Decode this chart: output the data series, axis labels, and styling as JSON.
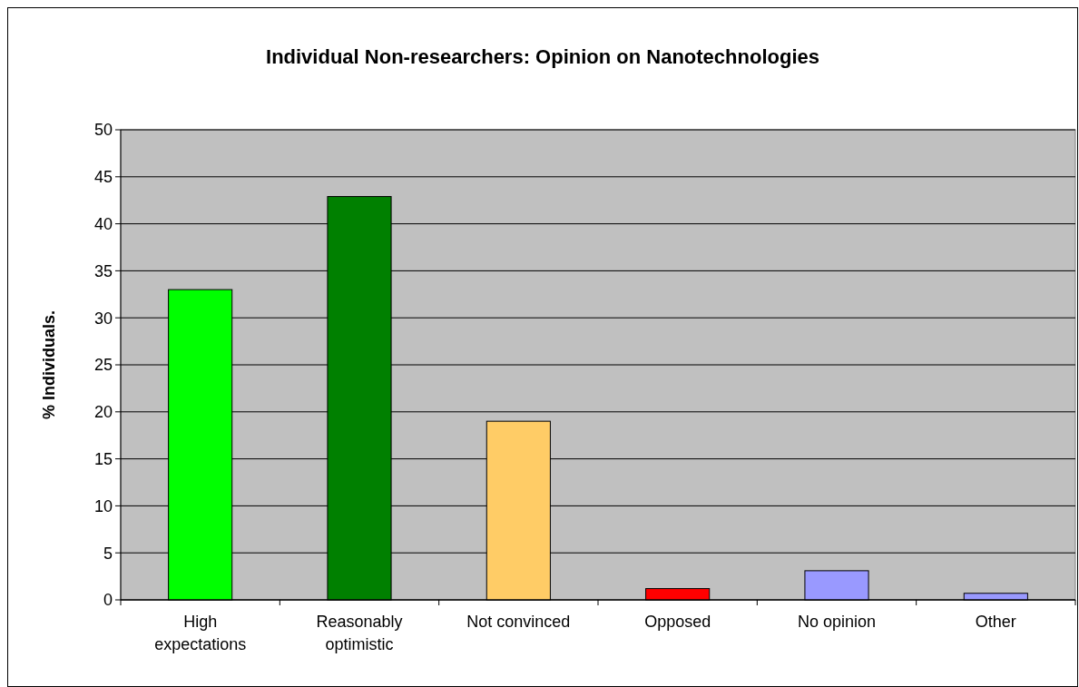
{
  "chart_data": {
    "type": "bar",
    "title": "Individual Non-researchers: Opinion on Nanotechnologies",
    "ylabel": "% Individuals.",
    "categories": [
      "High expectations",
      "Reasonably optimistic",
      "Not convinced",
      "Opposed",
      "No opinion",
      "Other"
    ],
    "values": [
      33,
      42.9,
      19,
      1.2,
      3.1,
      0.7
    ],
    "colors": [
      "#00ff00",
      "#008000",
      "#ffcc66",
      "#ff0000",
      "#9999ff",
      "#9999ff"
    ],
    "ylim": [
      0,
      50
    ],
    "yticks": [
      0,
      5,
      10,
      15,
      20,
      25,
      30,
      35,
      40,
      45,
      50
    ],
    "grid": "y"
  }
}
